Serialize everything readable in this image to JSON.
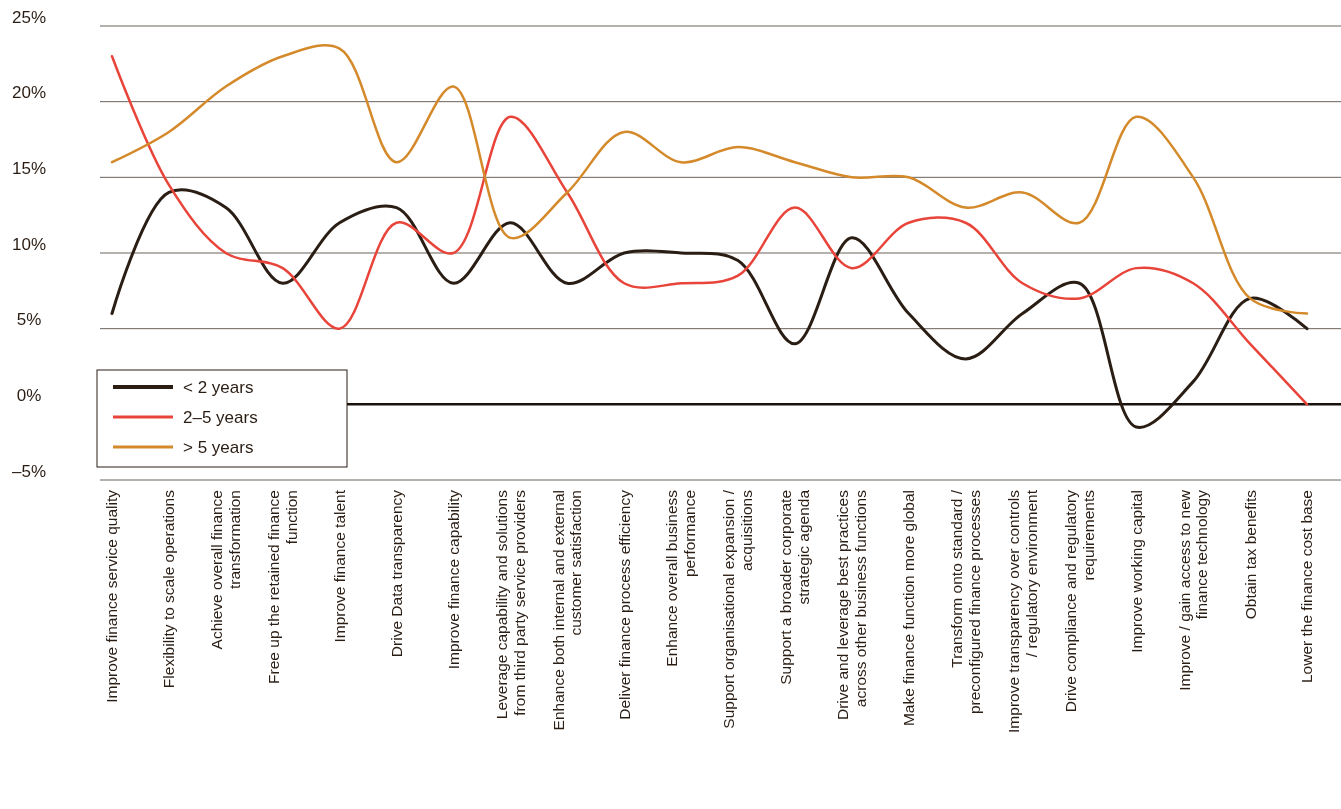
{
  "chart_data": {
    "type": "line",
    "categories": [
      "Improve finance service quality",
      "Flexibility to scale operations",
      "Achieve overall finance transformation",
      "Free up the retained finance function",
      "Improve finance talent",
      "Drive Data transparency",
      "Improve finance capability",
      "Leverage capability and solutions from third party service providers",
      "Enhance both internal and external customer satisfaction",
      "Deliver finance process efficiency",
      "Enhance overall business performance",
      "Support organisational expansion / acquisitions",
      "Support a broader corporate strategic agenda",
      "Drive and leverage best practices across other business functions",
      "Make finance function more global",
      "Transform onto standard / preconfigured finance processes",
      "Improve transparency over controls / regulatory environment",
      "Drive compliance and regulatory requirements",
      "Improve working capital",
      "Improve / gain access to new finance technology",
      "Obtain tax benefits",
      "Lower the finance cost base"
    ],
    "series": [
      {
        "name": "< 2 years",
        "color": "#2a1d14",
        "values": [
          6,
          14,
          13,
          8,
          12,
          13,
          8,
          12,
          8,
          10,
          10,
          9.5,
          4,
          11,
          6,
          3,
          6,
          8,
          -1.5,
          1.5,
          7,
          5
        ]
      },
      {
        "name": "2–5 years",
        "color": "#e8443a",
        "values": [
          23,
          14.5,
          10,
          9,
          5,
          12,
          10,
          19,
          14,
          8,
          8,
          8.5,
          13,
          9,
          12,
          12,
          8,
          7,
          9,
          8,
          4,
          0
        ]
      },
      {
        "name": "> 5 years",
        "color": "#d4892a",
        "values": [
          16,
          18,
          21,
          23,
          23.5,
          16,
          21,
          11,
          14,
          18,
          16,
          17,
          16,
          15,
          15,
          13,
          14,
          12,
          19,
          15,
          7,
          6
        ]
      }
    ],
    "ylim": [
      -5,
      25
    ],
    "yticks": [
      {
        "value": -5,
        "label": "–5%"
      },
      {
        "value": 0,
        "label": "0%"
      },
      {
        "value": 5,
        "label": "5%"
      },
      {
        "value": 10,
        "label": "10%"
      },
      {
        "value": 15,
        "label": "15%"
      },
      {
        "value": 20,
        "label": "20%"
      },
      {
        "value": 25,
        "label": "25%"
      }
    ],
    "grid": "y",
    "legend": "bottom left",
    "line_style": "solid",
    "marker": "none"
  }
}
